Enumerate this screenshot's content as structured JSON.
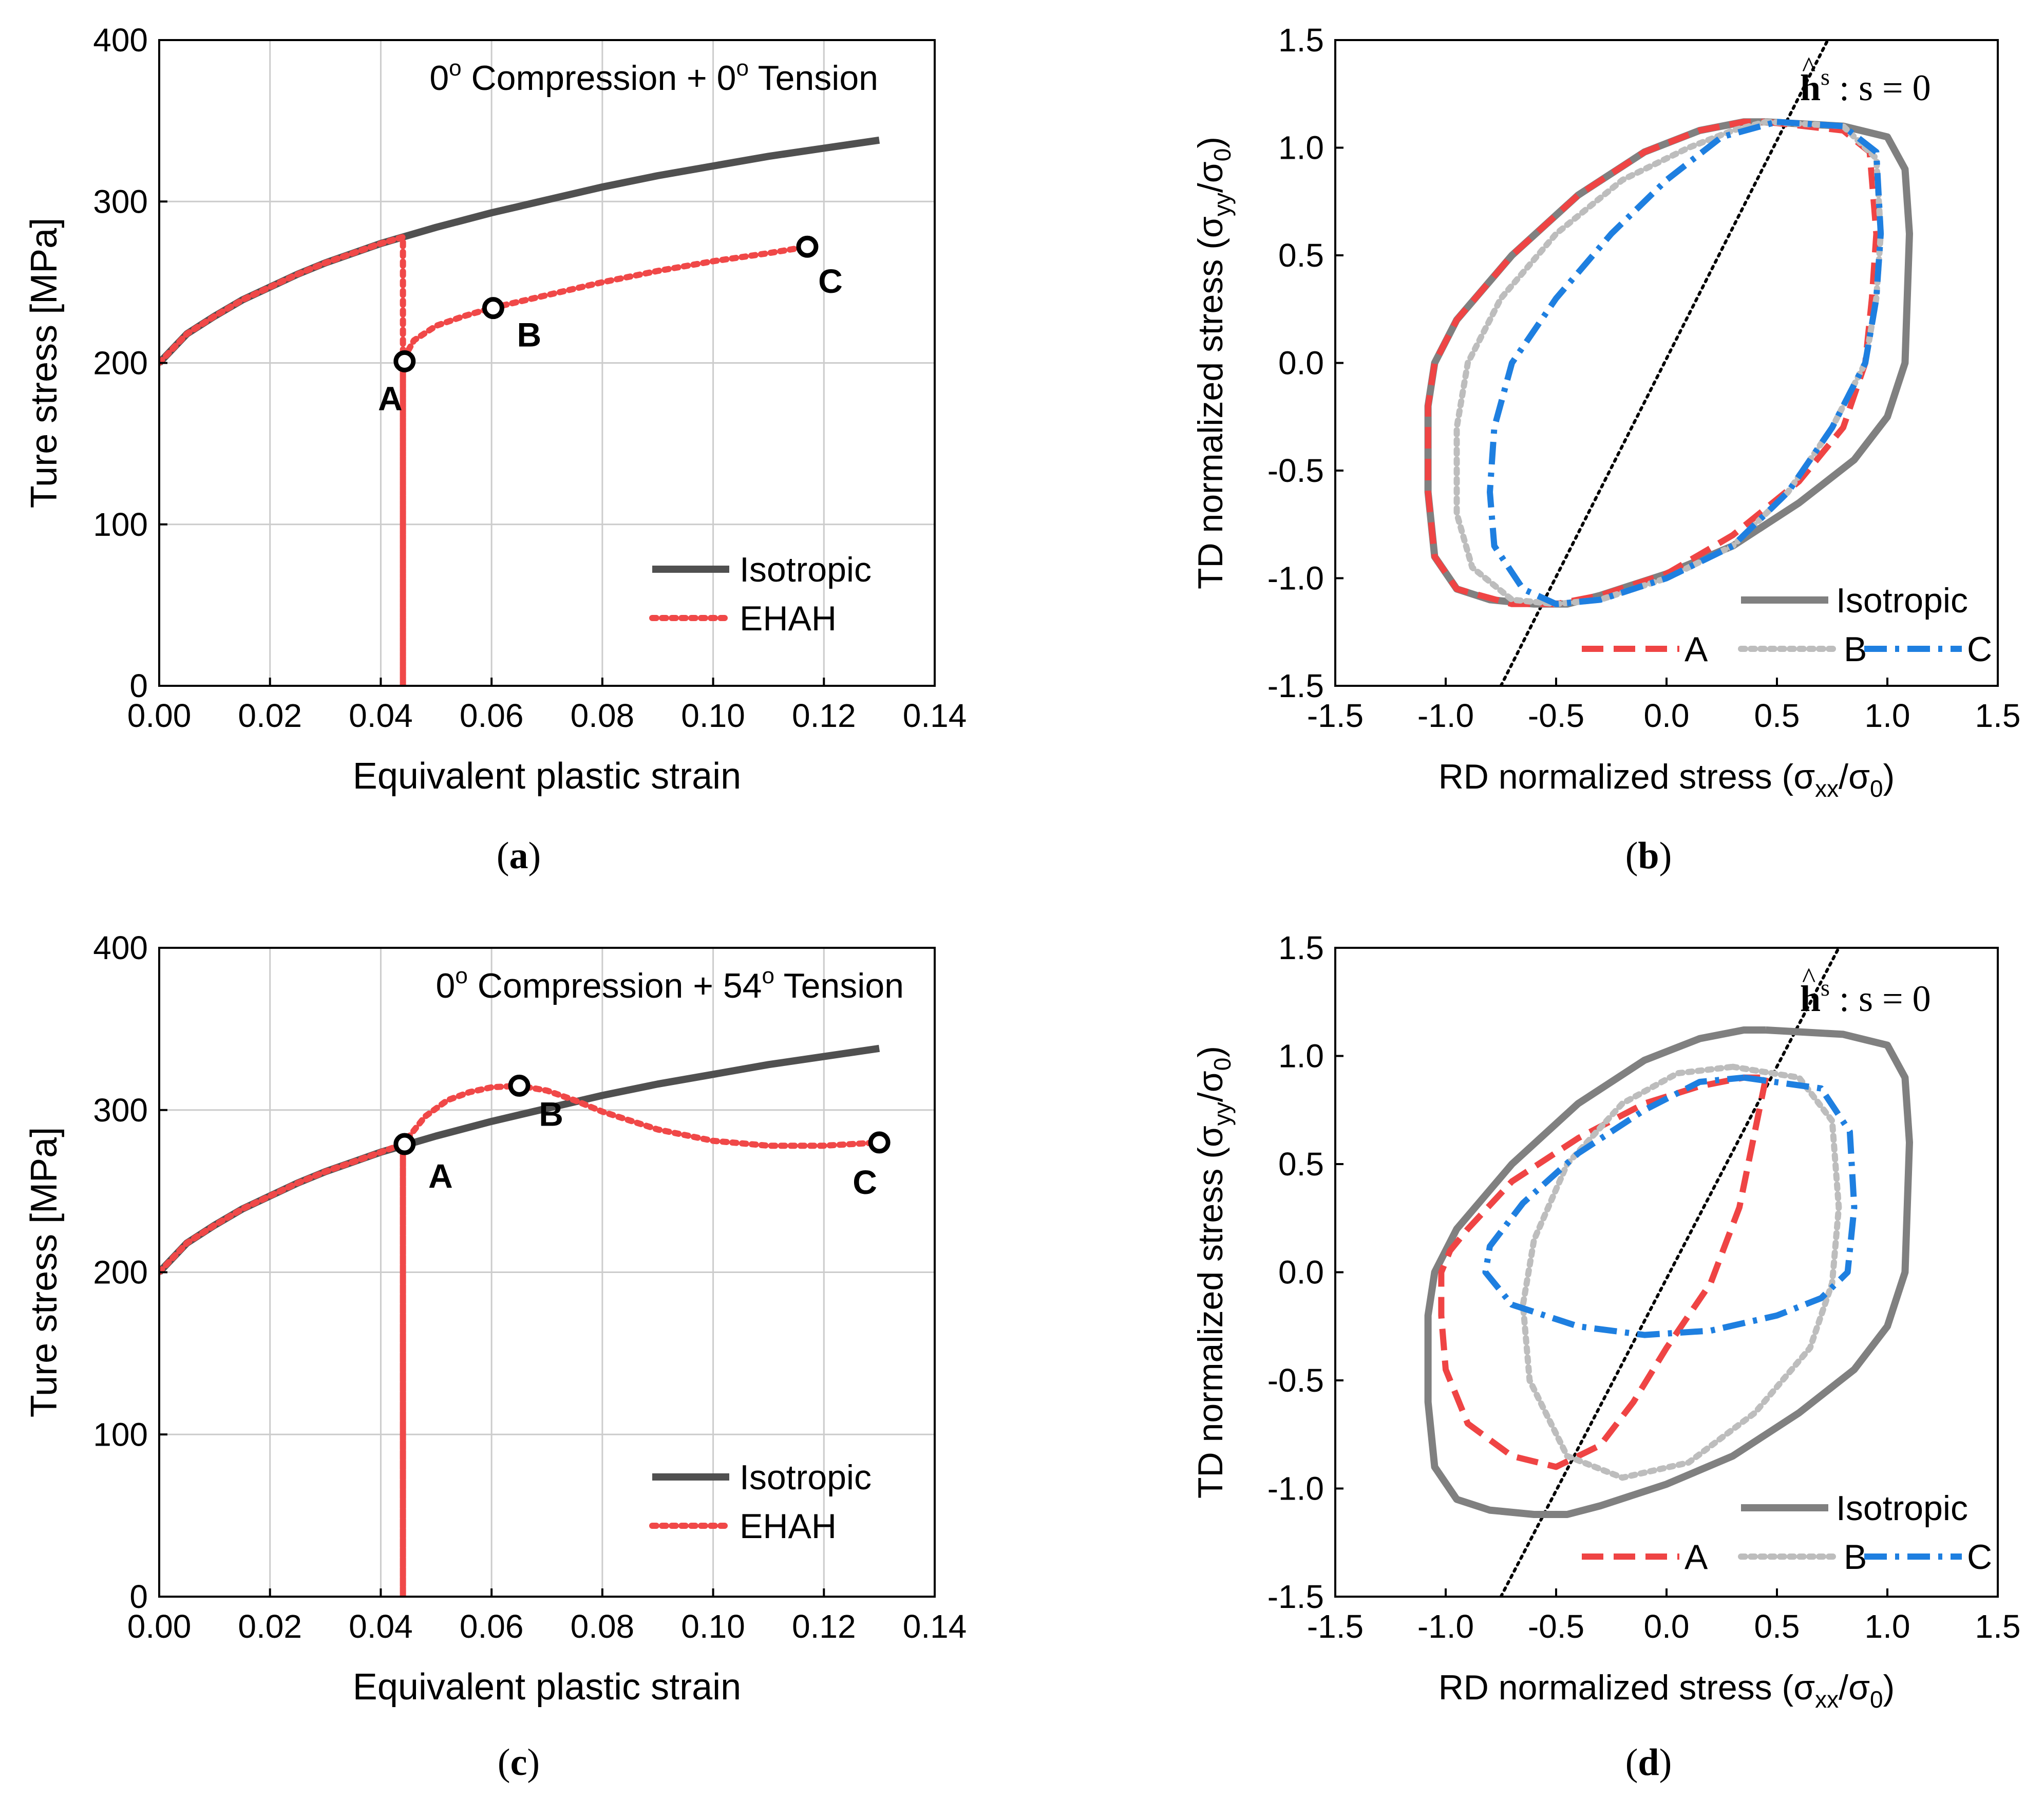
{
  "colors": {
    "isotropic_dark": "#505050",
    "isotropic_gray": "#808080",
    "ehah_red": "#f04848",
    "curve_a": "#ef4444",
    "curve_b": "#bdbdbd",
    "curve_c": "#1e7fe0",
    "grid": "#cccccc",
    "axis": "#000000"
  },
  "chart_data": [
    {
      "id": "a",
      "panel_label": "a",
      "type": "line",
      "title": "0o Compression + 0o Tension",
      "annotation": {
        "prefix": "0",
        "sup1": "o",
        "middle": " Compression + 0",
        "sup2": "o",
        "suffix": " Tension"
      },
      "xlabel": "Equivalent plastic strain",
      "ylabel": "Ture stress [MPa]",
      "xlim": [
        0,
        0.14
      ],
      "ylim": [
        0,
        400
      ],
      "xticks": [
        0.0,
        0.02,
        0.04,
        0.06,
        0.08,
        0.1,
        0.12,
        0.14
      ],
      "xtick_labels": [
        "0.00",
        "0.02",
        "0.04",
        "0.06",
        "0.08",
        "0.10",
        "0.12",
        "0.14"
      ],
      "yticks": [
        0,
        100,
        200,
        300,
        400
      ],
      "ytick_labels": [
        "0",
        "100",
        "200",
        "300",
        "400"
      ],
      "grid": true,
      "legend": {
        "position": "bottom-right",
        "entries": [
          "Isotropic",
          "EHAH"
        ]
      },
      "series": [
        {
          "name": "Isotropic",
          "style": "solid",
          "color": "#505050",
          "x": [
            0.0,
            0.005,
            0.01,
            0.015,
            0.02,
            0.025,
            0.03,
            0.035,
            0.04,
            0.045,
            0.05,
            0.06,
            0.07,
            0.08,
            0.09,
            0.1,
            0.11,
            0.12,
            0.13
          ],
          "y": [
            200,
            218,
            229,
            239,
            247,
            255,
            262,
            268,
            274,
            279,
            284,
            293,
            301,
            309,
            316,
            322,
            328,
            333,
            338
          ]
        },
        {
          "name": "EHAH",
          "style": "dotted",
          "color": "#f04848",
          "x": [
            0.0,
            0.005,
            0.01,
            0.015,
            0.02,
            0.025,
            0.03,
            0.035,
            0.04,
            0.044,
            0.044,
            0.044,
            0.046,
            0.05,
            0.055,
            0.06,
            0.07,
            0.08,
            0.09,
            0.1,
            0.11,
            0.117
          ],
          "y": [
            200,
            218,
            229,
            239,
            247,
            255,
            262,
            268,
            274,
            278,
            0,
            202,
            214,
            223,
            229,
            234,
            242,
            250,
            257,
            263,
            268,
            272
          ]
        }
      ],
      "points": [
        {
          "label": "A",
          "x": 0.0443,
          "y": 201
        },
        {
          "label": "B",
          "x": 0.0603,
          "y": 234
        },
        {
          "label": "C",
          "x": 0.117,
          "y": 272
        }
      ]
    },
    {
      "id": "b",
      "panel_label": "b",
      "type": "line",
      "annotation": {
        "vec": "h",
        "hat": "^",
        "sup": "s",
        "rest": " : s = 0"
      },
      "xlabel": {
        "prefix": "RD normalized stress (",
        "s1": "σ",
        "sub1": "xx",
        "mid": "/",
        "s2": "σ",
        "sub2": "0",
        "end": ")"
      },
      "ylabel": {
        "prefix": "TD normalized stress (",
        "s1": "σ",
        "sub1": "yy",
        "mid": "/",
        "s2": "σ",
        "sub2": "0",
        "end": ")"
      },
      "xlim": [
        -1.5,
        1.5
      ],
      "ylim": [
        -1.5,
        1.5
      ],
      "xticks": [
        -1.5,
        -1.0,
        -0.5,
        0.0,
        0.5,
        1.0,
        1.5
      ],
      "xtick_labels": [
        "-1.5",
        "-1.0",
        "-0.5",
        "0.0",
        "0.5",
        "1.0",
        "1.5"
      ],
      "yticks": [
        -1.5,
        -1.0,
        -0.5,
        0.0,
        0.5,
        1.0,
        1.5
      ],
      "ytick_labels": [
        "-1.5",
        "-1.0",
        "-0.5",
        "0.0",
        "0.5",
        "1.0",
        "1.5"
      ],
      "grid": false,
      "legend": {
        "position": "bottom-right",
        "entries": [
          "Isotropic",
          "A",
          "B",
          "C"
        ]
      },
      "neutral_line": {
        "x": [
          -0.75,
          0.73
        ],
        "y": [
          -1.5,
          1.5
        ]
      },
      "series": [
        {
          "name": "Isotropic",
          "style": "solid",
          "color": "#808080",
          "x": [
            0.45,
            0.8,
            1.0,
            1.08,
            1.1,
            1.08,
            1.0,
            0.85,
            0.6,
            0.3,
            0.0,
            -0.3,
            -0.45,
            -0.6,
            -0.8,
            -0.95,
            -1.05,
            -1.08,
            -1.08,
            -1.05,
            -0.95,
            -0.7,
            -0.4,
            -0.1,
            0.15,
            0.35,
            0.45
          ],
          "y": [
            1.12,
            1.1,
            1.05,
            0.9,
            0.6,
            0.0,
            -0.25,
            -0.45,
            -0.65,
            -0.85,
            -0.98,
            -1.08,
            -1.12,
            -1.12,
            -1.1,
            -1.05,
            -0.9,
            -0.6,
            -0.2,
            0.0,
            0.2,
            0.5,
            0.78,
            0.98,
            1.08,
            1.12,
            1.12
          ]
        },
        {
          "name": "A",
          "style": "dashed",
          "color": "#ef4444",
          "x": [
            0.45,
            0.8,
            0.92,
            0.95,
            0.93,
            0.9,
            0.8,
            0.6,
            0.3,
            0.0,
            -0.3,
            -0.5,
            -0.7,
            -0.95,
            -1.05,
            -1.08,
            -1.08,
            -1.05,
            -0.95,
            -0.7,
            -0.4,
            -0.1,
            0.15,
            0.35,
            0.45
          ],
          "y": [
            1.12,
            1.08,
            0.98,
            0.6,
            0.3,
            0.0,
            -0.3,
            -0.55,
            -0.8,
            -0.98,
            -1.08,
            -1.12,
            -1.12,
            -1.05,
            -0.9,
            -0.6,
            -0.2,
            0.0,
            0.2,
            0.5,
            0.78,
            0.98,
            1.08,
            1.12,
            1.12
          ]
        },
        {
          "name": "B",
          "style": "dotted",
          "color": "#bdbdbd",
          "x": [
            0.45,
            0.8,
            0.95,
            0.97,
            0.95,
            0.9,
            0.75,
            0.55,
            0.3,
            0.0,
            -0.3,
            -0.5,
            -0.7,
            -0.88,
            -0.95,
            -0.95,
            -0.9,
            -0.75,
            -0.5,
            -0.2,
            0.1,
            0.3,
            0.45
          ],
          "y": [
            1.12,
            1.1,
            0.95,
            0.6,
            0.3,
            0.0,
            -0.3,
            -0.6,
            -0.85,
            -1.0,
            -1.1,
            -1.12,
            -1.1,
            -0.95,
            -0.7,
            -0.3,
            0.0,
            0.3,
            0.6,
            0.85,
            1.0,
            1.08,
            1.12
          ]
        },
        {
          "name": "C",
          "style": "dashdot",
          "color": "#1e7fe0",
          "x": [
            0.5,
            0.8,
            0.95,
            0.97,
            0.95,
            0.9,
            0.75,
            0.55,
            0.3,
            0.0,
            -0.3,
            -0.5,
            -0.65,
            -0.78,
            -0.8,
            -0.78,
            -0.7,
            -0.5,
            -0.25,
            0.0,
            0.25,
            0.5
          ],
          "y": [
            1.12,
            1.1,
            0.98,
            0.6,
            0.3,
            0.0,
            -0.3,
            -0.6,
            -0.85,
            -1.0,
            -1.1,
            -1.12,
            -1.05,
            -0.85,
            -0.6,
            -0.3,
            0.0,
            0.3,
            0.6,
            0.85,
            1.05,
            1.12
          ]
        }
      ]
    },
    {
      "id": "c",
      "panel_label": "c",
      "type": "line",
      "annotation": {
        "prefix": "0",
        "sup1": "o",
        "middle": " Compression + 54",
        "sup2": "o",
        "suffix": " Tension"
      },
      "xlabel": "Equivalent plastic strain",
      "ylabel": "Ture stress [MPa]",
      "xlim": [
        0,
        0.14
      ],
      "ylim": [
        0,
        400
      ],
      "xticks": [
        0.0,
        0.02,
        0.04,
        0.06,
        0.08,
        0.1,
        0.12,
        0.14
      ],
      "xtick_labels": [
        "0.00",
        "0.02",
        "0.04",
        "0.06",
        "0.08",
        "0.10",
        "0.12",
        "0.14"
      ],
      "yticks": [
        0,
        100,
        200,
        300,
        400
      ],
      "ytick_labels": [
        "0",
        "100",
        "200",
        "300",
        "400"
      ],
      "grid": true,
      "legend": {
        "position": "bottom-right",
        "entries": [
          "Isotropic",
          "EHAH"
        ]
      },
      "series": [
        {
          "name": "Isotropic",
          "style": "solid",
          "color": "#505050",
          "x": [
            0.0,
            0.005,
            0.01,
            0.015,
            0.02,
            0.025,
            0.03,
            0.035,
            0.04,
            0.045,
            0.05,
            0.06,
            0.07,
            0.08,
            0.09,
            0.1,
            0.11,
            0.12,
            0.13
          ],
          "y": [
            200,
            218,
            229,
            239,
            247,
            255,
            262,
            268,
            274,
            279,
            284,
            293,
            301,
            309,
            316,
            322,
            328,
            333,
            338
          ]
        },
        {
          "name": "EHAH",
          "style": "dotted",
          "color": "#f04848",
          "x": [
            0.0,
            0.005,
            0.01,
            0.015,
            0.02,
            0.025,
            0.03,
            0.035,
            0.04,
            0.044,
            0.044,
            0.044,
            0.048,
            0.052,
            0.056,
            0.06,
            0.065,
            0.07,
            0.075,
            0.08,
            0.09,
            0.1,
            0.11,
            0.12,
            0.13
          ],
          "y": [
            200,
            218,
            229,
            239,
            247,
            255,
            262,
            268,
            274,
            279,
            0,
            279,
            296,
            306,
            311,
            314,
            315,
            312,
            306,
            299,
            288,
            281,
            278,
            278,
            280
          ]
        }
      ],
      "points": [
        {
          "label": "A",
          "x": 0.0443,
          "y": 279
        },
        {
          "label": "B",
          "x": 0.065,
          "y": 315
        },
        {
          "label": "C",
          "x": 0.13,
          "y": 280
        }
      ]
    },
    {
      "id": "d",
      "panel_label": "d",
      "type": "line",
      "annotation": {
        "vec": "h",
        "hat": "^",
        "sup": "s",
        "rest": " : s = 0"
      },
      "xlabel": {
        "prefix": "RD normalized stress (",
        "s1": "σ",
        "sub1": "xx",
        "mid": "/",
        "s2": "σ",
        "sub2": "0",
        "end": ")"
      },
      "ylabel": {
        "prefix": "TD normalized stress (",
        "s1": "σ",
        "sub1": "yy",
        "mid": "/",
        "s2": "σ",
        "sub2": "0",
        "end": ")"
      },
      "xlim": [
        -1.5,
        1.5
      ],
      "ylim": [
        -1.5,
        1.5
      ],
      "xticks": [
        -1.5,
        -1.0,
        -0.5,
        0.0,
        0.5,
        1.0,
        1.5
      ],
      "xtick_labels": [
        "-1.5",
        "-1.0",
        "-0.5",
        "0.0",
        "0.5",
        "1.0",
        "1.5"
      ],
      "yticks": [
        -1.5,
        -1.0,
        -0.5,
        0.0,
        0.5,
        1.0,
        1.5
      ],
      "ytick_labels": [
        "-1.5",
        "-1.0",
        "-0.5",
        "0.0",
        "0.5",
        "1.0",
        "1.5"
      ],
      "grid": false,
      "legend": {
        "position": "bottom-right",
        "entries": [
          "Isotropic",
          "A",
          "B",
          "C"
        ]
      },
      "neutral_line": {
        "x": [
          -0.75,
          0.78
        ],
        "y": [
          -1.5,
          1.5
        ]
      },
      "series": [
        {
          "name": "Isotropic",
          "style": "solid",
          "color": "#808080",
          "x": [
            0.45,
            0.8,
            1.0,
            1.08,
            1.1,
            1.08,
            1.0,
            0.85,
            0.6,
            0.3,
            0.0,
            -0.3,
            -0.45,
            -0.6,
            -0.8,
            -0.95,
            -1.05,
            -1.08,
            -1.08,
            -1.05,
            -0.95,
            -0.7,
            -0.4,
            -0.1,
            0.15,
            0.35,
            0.45
          ],
          "y": [
            1.12,
            1.1,
            1.05,
            0.9,
            0.6,
            0.0,
            -0.25,
            -0.45,
            -0.65,
            -0.85,
            -0.98,
            -1.08,
            -1.12,
            -1.12,
            -1.1,
            -1.05,
            -0.9,
            -0.6,
            -0.2,
            0.0,
            0.2,
            0.5,
            0.78,
            0.98,
            1.08,
            1.12,
            1.12
          ]
        },
        {
          "name": "A",
          "style": "dashed",
          "color": "#ef4444",
          "x": [
            0.45,
            0.4,
            0.33,
            0.2,
            0.0,
            -0.15,
            -0.3,
            -0.5,
            -0.7,
            -0.9,
            -1.0,
            -1.02,
            -1.02,
            -0.98,
            -0.9,
            -0.7,
            -0.4,
            -0.1,
            0.15,
            0.35,
            0.45
          ],
          "y": [
            0.9,
            0.65,
            0.3,
            -0.05,
            -0.35,
            -0.6,
            -0.8,
            -0.9,
            -0.85,
            -0.7,
            -0.45,
            -0.2,
            0.0,
            0.1,
            0.2,
            0.42,
            0.62,
            0.78,
            0.86,
            0.9,
            0.9
          ]
        },
        {
          "name": "B",
          "style": "dotted",
          "color": "#bdbdbd",
          "x": [
            0.3,
            0.6,
            0.75,
            0.78,
            0.75,
            0.65,
            0.4,
            0.1,
            -0.2,
            -0.45,
            -0.62,
            -0.65,
            -0.6,
            -0.45,
            -0.2,
            0.05,
            0.3
          ],
          "y": [
            0.95,
            0.9,
            0.7,
            0.3,
            -0.05,
            -0.35,
            -0.65,
            -0.88,
            -0.95,
            -0.85,
            -0.5,
            -0.15,
            0.15,
            0.5,
            0.78,
            0.92,
            0.95
          ]
        },
        {
          "name": "C",
          "style": "dashdot",
          "color": "#1e7fe0",
          "x": [
            0.35,
            0.7,
            0.83,
            0.85,
            0.82,
            0.7,
            0.5,
            0.2,
            -0.1,
            -0.4,
            -0.7,
            -0.82,
            -0.8,
            -0.65,
            -0.4,
            -0.1,
            0.15,
            0.35
          ],
          "y": [
            0.9,
            0.85,
            0.65,
            0.3,
            0.0,
            -0.12,
            -0.2,
            -0.27,
            -0.29,
            -0.25,
            -0.15,
            0.0,
            0.12,
            0.32,
            0.55,
            0.75,
            0.88,
            0.9
          ]
        }
      ]
    }
  ]
}
